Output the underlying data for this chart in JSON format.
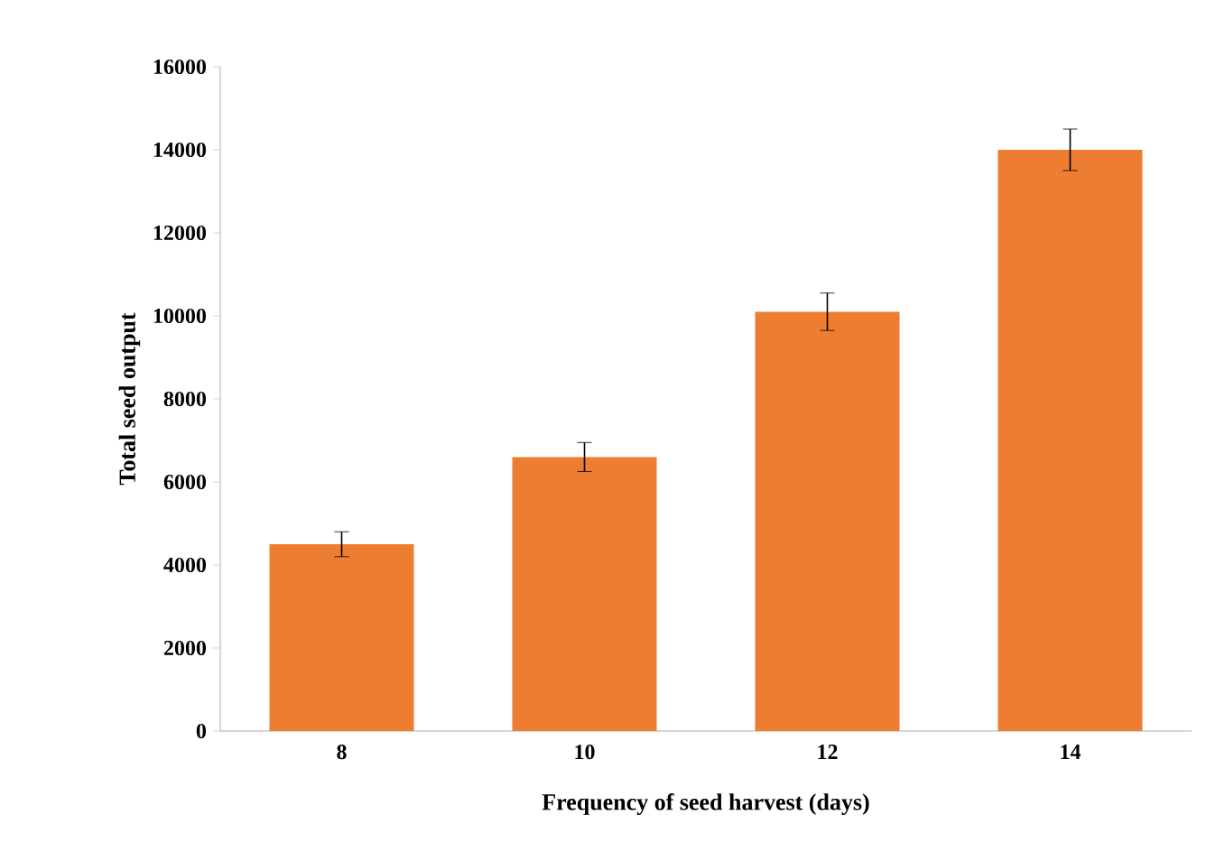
{
  "chart_data": {
    "type": "bar",
    "xlabel": "Frequency of seed harvest (days)",
    "ylabel": "Total seed output",
    "categories": [
      "8",
      "10",
      "12",
      "14"
    ],
    "values": [
      4500,
      6600,
      10100,
      14000
    ],
    "errors": [
      300,
      350,
      450,
      500
    ],
    "color": "#ed7d31",
    "ylim": [
      0,
      16000
    ],
    "yticks": [
      0,
      2000,
      4000,
      6000,
      8000,
      10000,
      12000,
      14000,
      16000
    ],
    "grid": false
  }
}
